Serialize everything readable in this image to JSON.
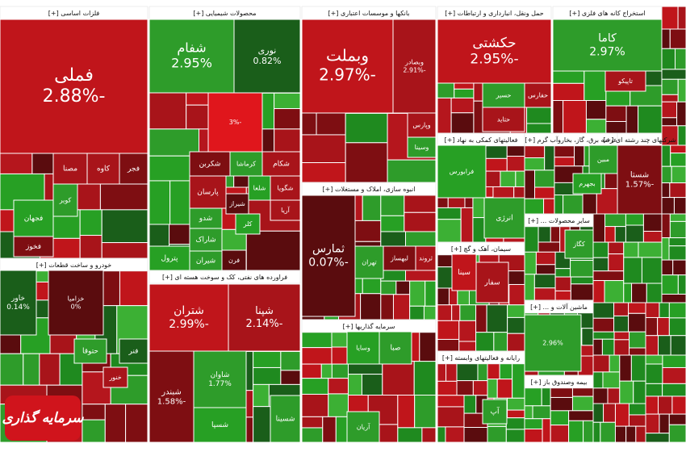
{
  "logo": "سرمایه گذاری",
  "sectors": [
    {
      "title": "فلزات اساسی [+]",
      "tiles": [
        {
          "name": "فملی",
          "change": "-2.88%"
        },
        {
          "name": "مصنا"
        },
        {
          "name": "کاوه"
        },
        {
          "name": "فجر"
        },
        {
          "name": "کویر"
        },
        {
          "name": "فجهان"
        },
        {
          "name": "فخوز"
        }
      ]
    },
    {
      "title": "خودرو و ساخت قطعات [+]",
      "tiles": [
        {
          "name": "خاور",
          "change": "0.14%"
        },
        {
          "name": "خزامیا",
          "change": "0%"
        },
        {
          "name": "حتوقا"
        },
        {
          "name": "فنر"
        },
        {
          "name": "خنور"
        }
      ]
    },
    {
      "title": "محصولات شیمیایی [+]",
      "tiles": [
        {
          "name": "شفام",
          "change": "2.95%"
        },
        {
          "name": "نوری",
          "change": "0.82%"
        },
        {
          "change": "-3%"
        },
        {
          "name": "شکربن"
        },
        {
          "name": "کرماشا"
        },
        {
          "name": "شکام"
        },
        {
          "name": "پارسان"
        },
        {
          "name": "شلعا"
        },
        {
          "name": "شگویا"
        },
        {
          "name": "شیراز"
        },
        {
          "name": "آریا"
        },
        {
          "name": "شدو"
        },
        {
          "name": "کلر"
        },
        {
          "name": "شاراک"
        },
        {
          "name": "پترول"
        },
        {
          "name": "فرن"
        },
        {
          "name": "شیران"
        }
      ]
    },
    {
      "title": "فراورده های نفتی، کک و سوخت هسته ای [+]",
      "tiles": [
        {
          "name": "شتران",
          "change": "-2.99%"
        },
        {
          "name": "شپنا",
          "change": "-2.14%"
        },
        {
          "name": "شبندر",
          "change": "-1.58%"
        },
        {
          "name": "شاوان",
          "change": "1.77%"
        },
        {
          "name": "شسپا"
        },
        {
          "name": "شسینا"
        }
      ]
    },
    {
      "title": "بانکها و موسسات اعتباری [+]",
      "tiles": [
        {
          "name": "وبملت",
          "change": "-2.97%"
        },
        {
          "name": "وبصادر",
          "change": "-2.91%"
        },
        {
          "name": "وپارس"
        },
        {
          "name": "وسینا"
        }
      ]
    },
    {
      "title": "انبوه سازی، املاک و مستغلات [+]",
      "tiles": [
        {
          "name": "ثمارس",
          "change": "-0.07%"
        },
        {
          "name": "ثروند"
        },
        {
          "name": "لبهساز"
        },
        {
          "name": "تهران"
        }
      ]
    },
    {
      "title": "سرمایه گذاریها [+]",
      "tiles": [
        {
          "name": "صبا"
        },
        {
          "name": "وسایا"
        },
        {
          "name": "آریان"
        }
      ]
    },
    {
      "title": "حمل ونقل، انبارداری و ارتباطات [+]",
      "tiles": [
        {
          "name": "حکشتی",
          "change": "-2.95%"
        },
        {
          "name": "حسیر"
        },
        {
          "name": "حفارس"
        },
        {
          "name": "حتاید"
        }
      ]
    },
    {
      "title": "فعالیتهای کمکی به نهاد [+]",
      "tiles": [
        {
          "name": "فرابورس"
        },
        {
          "name": "انرژی"
        }
      ]
    },
    {
      "title": "سیمان، آهک و گچ [+]",
      "tiles": [
        {
          "name": "سینا"
        },
        {
          "name": "سفار"
        }
      ]
    },
    {
      "title": "رایانه و فعالیتهای وابسته [+]",
      "tiles": [
        {
          "name": "آپ"
        }
      ]
    },
    {
      "title": "استخراج کانه های فلزی [+]",
      "tiles": [
        {
          "name": "کاما",
          "change": "2.97%"
        },
        {
          "name": "تاپیکو"
        }
      ]
    },
    {
      "title": "عرضه برق، گاز، بخاروآب گرم [+]",
      "tiles": [
        {
          "name": "مبین"
        },
        {
          "name": "بجهرم"
        }
      ]
    },
    {
      "title": "شرکتهای چند رشته ای [+]",
      "tiles": [
        {
          "name": "شستا",
          "change": "-1.57%"
        }
      ]
    },
    {
      "title": "سایر محصولات ... [+]",
      "tiles": [
        {
          "name": "کگاز"
        }
      ]
    },
    {
      "title": "ماشین آلات و ... [+]",
      "tiles": [
        {
          "change": "2.96%"
        }
      ]
    },
    {
      "title": "بیمه وصندوق باز [+]",
      "tiles": []
    }
  ]
}
